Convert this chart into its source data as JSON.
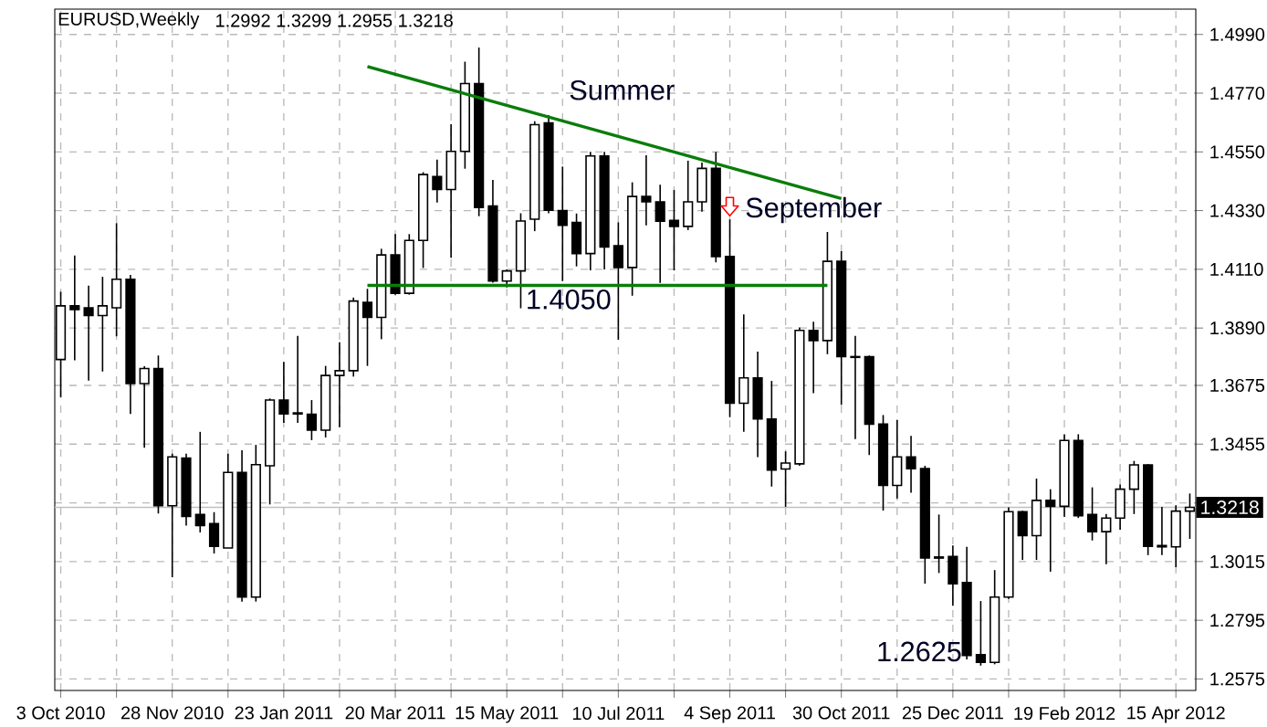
{
  "chart_data": {
    "type": "candlestick",
    "title": "EURUSD,Weekly",
    "subtitle": "1.2992 1.3299 1.2955 1.3218",
    "x": [
      "2010-10-03",
      "2010-10-10",
      "2010-10-17",
      "2010-10-24",
      "2010-10-31",
      "2010-11-07",
      "2010-11-14",
      "2010-11-21",
      "2010-11-28",
      "2010-12-05",
      "2010-12-12",
      "2010-12-19",
      "2010-12-26",
      "2011-01-02",
      "2011-01-09",
      "2011-01-16",
      "2011-01-23",
      "2011-01-30",
      "2011-02-06",
      "2011-02-13",
      "2011-02-20",
      "2011-02-27",
      "2011-03-06",
      "2011-03-13",
      "2011-03-20",
      "2011-03-27",
      "2011-04-03",
      "2011-04-10",
      "2011-04-17",
      "2011-04-24",
      "2011-05-01",
      "2011-05-08",
      "2011-05-15",
      "2011-05-22",
      "2011-05-29",
      "2011-06-05",
      "2011-06-12",
      "2011-06-19",
      "2011-06-26",
      "2011-07-03",
      "2011-07-10",
      "2011-07-17",
      "2011-07-24",
      "2011-07-31",
      "2011-08-07",
      "2011-08-14",
      "2011-08-21",
      "2011-08-28",
      "2011-09-04",
      "2011-09-11",
      "2011-09-18",
      "2011-09-25",
      "2011-10-02",
      "2011-10-09",
      "2011-10-16",
      "2011-10-23",
      "2011-10-30",
      "2011-11-06",
      "2011-11-13",
      "2011-11-20",
      "2011-11-27",
      "2011-12-04",
      "2011-12-11",
      "2011-12-18",
      "2011-12-25",
      "2012-01-01",
      "2012-01-08",
      "2012-01-15",
      "2012-01-22",
      "2012-01-29",
      "2012-02-05",
      "2012-02-12",
      "2012-02-19",
      "2012-02-26",
      "2012-03-04",
      "2012-03-11",
      "2012-03-18",
      "2012-03-25",
      "2012-04-01",
      "2012-04-08",
      "2012-04-15",
      "2012-04-22"
    ],
    "ohlc": [
      [
        1.3772,
        1.4026,
        1.3631,
        1.3973
      ],
      [
        1.3973,
        1.4162,
        1.3769,
        1.3959
      ],
      [
        1.3966,
        1.4049,
        1.3693,
        1.3937
      ],
      [
        1.3937,
        1.4082,
        1.3727,
        1.3973
      ],
      [
        1.3966,
        1.4283,
        1.3859,
        1.4073
      ],
      [
        1.4073,
        1.4089,
        1.3568,
        1.3682
      ],
      [
        1.3682,
        1.3747,
        1.3441,
        1.3738
      ],
      [
        1.3738,
        1.3787,
        1.3195,
        1.3224
      ],
      [
        1.3224,
        1.3419,
        1.2956,
        1.3407
      ],
      [
        1.3403,
        1.3419,
        1.315,
        1.3184
      ],
      [
        1.3191,
        1.3501,
        1.3124,
        1.315
      ],
      [
        1.3157,
        1.32,
        1.3045,
        1.3072
      ],
      [
        1.3066,
        1.3419,
        1.3066,
        1.3349
      ],
      [
        1.3349,
        1.3432,
        1.2865,
        1.2882
      ],
      [
        1.2882,
        1.3452,
        1.2865,
        1.3378
      ],
      [
        1.3374,
        1.3626,
        1.3229,
        1.362
      ],
      [
        1.362,
        1.3763,
        1.3535,
        1.3568
      ],
      [
        1.3568,
        1.3861,
        1.3535,
        1.3572
      ],
      [
        1.3567,
        1.362,
        1.347,
        1.3507
      ],
      [
        1.3507,
        1.3748,
        1.348,
        1.3712
      ],
      [
        1.3712,
        1.3837,
        1.3518,
        1.373
      ],
      [
        1.373,
        1.4004,
        1.3708,
        1.3991
      ],
      [
        1.3986,
        1.4037,
        1.3748,
        1.393
      ],
      [
        1.393,
        1.4187,
        1.3848,
        1.4164
      ],
      [
        1.4164,
        1.4242,
        1.4015,
        1.402
      ],
      [
        1.402,
        1.4242,
        1.4015,
        1.4218
      ],
      [
        1.4218,
        1.4474,
        1.4115,
        1.4465
      ],
      [
        1.4458,
        1.4521,
        1.436,
        1.4409
      ],
      [
        1.4409,
        1.4654,
        1.4153,
        1.4552
      ],
      [
        1.4552,
        1.4888,
        1.4487,
        1.4806
      ],
      [
        1.4806,
        1.4941,
        1.4309,
        1.4342
      ],
      [
        1.4347,
        1.4445,
        1.406,
        1.4066
      ],
      [
        1.4066,
        1.411,
        1.4042,
        1.4104
      ],
      [
        1.4104,
        1.432,
        1.3964,
        1.4291
      ],
      [
        1.4298,
        1.4665,
        1.4253,
        1.4652
      ],
      [
        1.4659,
        1.4688,
        1.432,
        1.4331
      ],
      [
        1.433,
        1.4495,
        1.4066,
        1.4275
      ],
      [
        1.4286,
        1.4319,
        1.4121,
        1.4169
      ],
      [
        1.4169,
        1.455,
        1.4106,
        1.4535
      ],
      [
        1.4535,
        1.455,
        1.411,
        1.4194
      ],
      [
        1.4198,
        1.4286,
        1.3846,
        1.4117
      ],
      [
        1.4117,
        1.4436,
        1.4011,
        1.4383
      ],
      [
        1.4383,
        1.4537,
        1.4275,
        1.4363
      ],
      [
        1.4363,
        1.4427,
        1.4059,
        1.429
      ],
      [
        1.4293,
        1.4407,
        1.4106,
        1.4271
      ],
      [
        1.4271,
        1.4517,
        1.4257,
        1.4363
      ],
      [
        1.4363,
        1.451,
        1.4326,
        1.4488
      ],
      [
        1.4488,
        1.455,
        1.4136,
        1.4158
      ],
      [
        1.4158,
        1.4297,
        1.3556,
        1.3608
      ],
      [
        1.3608,
        1.3941,
        1.3501,
        1.3703
      ],
      [
        1.3703,
        1.3802,
        1.3406,
        1.3549
      ],
      [
        1.3549,
        1.3692,
        1.3296,
        1.3358
      ],
      [
        1.3362,
        1.3428,
        1.322,
        1.3384
      ],
      [
        1.3381,
        1.3892,
        1.3374,
        1.3881
      ],
      [
        1.3881,
        1.3914,
        1.3646,
        1.3843
      ],
      [
        1.3843,
        1.425,
        1.3792,
        1.414
      ],
      [
        1.414,
        1.4178,
        1.3602,
        1.3783
      ],
      [
        1.3783,
        1.3861,
        1.3474,
        1.378
      ],
      [
        1.3783,
        1.3787,
        1.3414,
        1.353
      ],
      [
        1.353,
        1.3564,
        1.3206,
        1.33
      ],
      [
        1.33,
        1.3546,
        1.3251,
        1.3407
      ],
      [
        1.3407,
        1.3486,
        1.3273,
        1.3363
      ],
      [
        1.3363,
        1.3374,
        1.2932,
        1.3028
      ],
      [
        1.3032,
        1.3191,
        1.2972,
        1.3028
      ],
      [
        1.3034,
        1.3075,
        1.2849,
        1.2932
      ],
      [
        1.2936,
        1.307,
        1.2648,
        1.2663
      ],
      [
        1.2666,
        1.2867,
        1.2625,
        1.2637
      ],
      [
        1.2637,
        1.2983,
        1.263,
        1.2882
      ],
      [
        1.2882,
        1.3218,
        1.2875,
        1.3202
      ],
      [
        1.3202,
        1.3205,
        1.3021,
        1.3112
      ],
      [
        1.3112,
        1.3326,
        1.3021,
        1.3244
      ],
      [
        1.3244,
        1.3286,
        1.2977,
        1.3222
      ],
      [
        1.3222,
        1.3492,
        1.3182,
        1.3469
      ],
      [
        1.3469,
        1.3492,
        1.3178,
        1.3187
      ],
      [
        1.3191,
        1.3293,
        1.3094,
        1.3127
      ],
      [
        1.3127,
        1.3193,
        1.3005,
        1.3178
      ],
      [
        1.3178,
        1.3304,
        1.3134,
        1.3286
      ],
      [
        1.3286,
        1.3392,
        1.3193,
        1.3377
      ],
      [
        1.3377,
        1.338,
        1.3039,
        1.3072
      ],
      [
        1.3075,
        1.322,
        1.3039,
        1.307
      ],
      [
        1.307,
        1.3226,
        1.2994,
        1.3204
      ],
      [
        1.3204,
        1.327,
        1.31,
        1.3218
      ]
    ],
    "series": [
      {
        "type": "line",
        "x": [
          "2011-03-06",
          "2011-10-30"
        ],
        "values": [
          1.487,
          1.4375
        ],
        "color": "#0a7d0a"
      },
      {
        "type": "line",
        "x": [
          "2011-03-06",
          "2011-10-23"
        ],
        "values": [
          1.405,
          1.405
        ],
        "color": "#0a7d0a"
      }
    ],
    "xlim": [
      "2010-09-30",
      "2012-04-25"
    ],
    "xticks": [
      {
        "value": "2010-10-03",
        "label": "3 Oct 2010"
      },
      {
        "value": "2010-10-31",
        "label": null
      },
      {
        "value": "2010-11-28",
        "label": "28 Nov 2010"
      },
      {
        "value": "2010-12-26",
        "label": null
      },
      {
        "value": "2011-01-23",
        "label": "23 Jan 2011"
      },
      {
        "value": "2011-02-20",
        "label": null
      },
      {
        "value": "2011-03-20",
        "label": "20 Mar 2011"
      },
      {
        "value": "2011-04-17",
        "label": null
      },
      {
        "value": "2011-05-15",
        "label": "15 May 2011"
      },
      {
        "value": "2011-06-12",
        "label": null
      },
      {
        "value": "2011-07-10",
        "label": "10 Jul 2011"
      },
      {
        "value": "2011-08-07",
        "label": null
      },
      {
        "value": "2011-09-04",
        "label": "4 Sep 2011"
      },
      {
        "value": "2011-10-02",
        "label": null
      },
      {
        "value": "2011-10-30",
        "label": "30 Oct 2011"
      },
      {
        "value": "2011-11-27",
        "label": null
      },
      {
        "value": "2011-12-25",
        "label": "25 Dec 2011"
      },
      {
        "value": "2012-01-22",
        "label": null
      },
      {
        "value": "2012-02-19",
        "label": "19 Feb 2012"
      },
      {
        "value": "2012-03-18",
        "label": null
      },
      {
        "value": "2012-04-15",
        "label": "15 Apr 2012"
      }
    ],
    "ylim": [
      1.2532,
      1.5085
    ],
    "yticks": [
      1.2575,
      1.2795,
      1.3015,
      {
        "value": 1.3235,
        "label": null
      },
      1.3455,
      1.3675,
      {
        "value": 1.389,
        "label": "1.3890"
      },
      {
        "value": 1.411,
        "label": "1.4110"
      },
      {
        "value": 1.433,
        "label": "1.4330"
      },
      {
        "value": 1.455,
        "label": "1.4550"
      },
      {
        "value": 1.477,
        "label": "1.4770"
      },
      {
        "value": 1.499,
        "label": "1.4990"
      }
    ],
    "grid": true,
    "ref_lines": [
      {
        "axis": "y",
        "value": 1.3218,
        "label": "1.3218",
        "color": "#c0c0c0"
      }
    ],
    "annotations": [
      "Summer",
      "September",
      {
        "text": "1.4050",
        "x": "2011-06-15",
        "y": 1.405
      },
      {
        "text": "1.2625",
        "x": "2012-01-08",
        "y": 1.2625
      }
    ]
  }
}
